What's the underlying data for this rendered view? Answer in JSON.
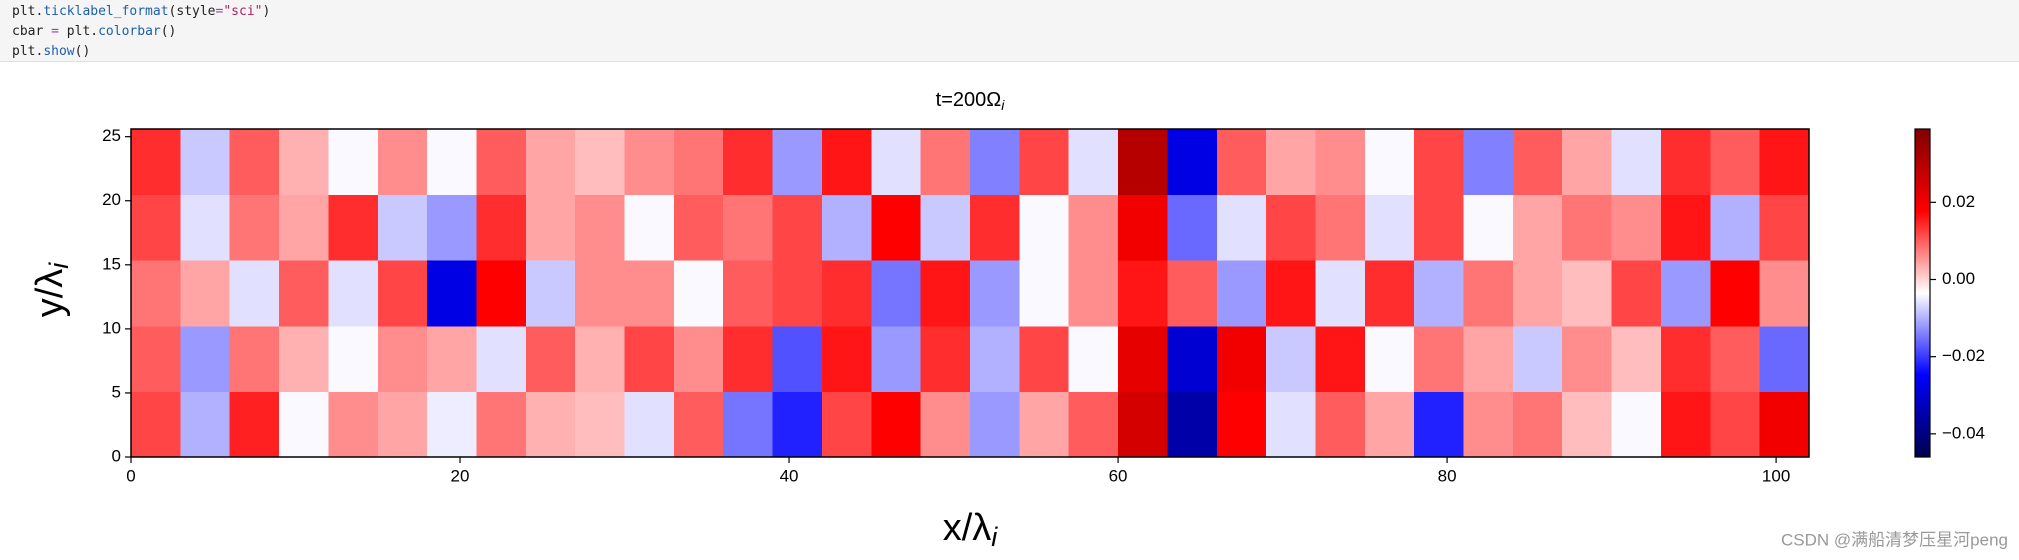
{
  "code": {
    "lines": [
      "plt.ticklabel_format(style=\"sci\")",
      "cbar = plt.colorbar()",
      "plt.show()"
    ]
  },
  "chart_data": {
    "type": "heatmap",
    "title": {
      "text": "t=200Ω",
      "subscript": "i"
    },
    "x_label": {
      "text": "x/λ",
      "subscript": "i"
    },
    "y_label": {
      "text": "y/λ",
      "subscript": "i"
    },
    "xlim": [
      0,
      102
    ],
    "xticks": [
      0,
      20,
      40,
      60,
      80,
      100
    ],
    "ylim": [
      0,
      25.6
    ],
    "yticks": [
      0,
      5,
      10,
      15,
      20,
      25
    ],
    "colormap": "seismic",
    "z": [
      [
        0.012,
        -0.01,
        0.015,
        -0.004,
        0.006,
        0.004,
        -0.005,
        0.008,
        0.003,
        0.002,
        -0.006,
        0.01,
        -0.015,
        -0.022,
        0.012,
        0.018,
        0.006,
        -0.012,
        0.004,
        0.01,
        0.025,
        -0.035,
        0.018,
        -0.006,
        0.01,
        0.004,
        -0.022,
        0.006,
        0.008,
        0.002,
        -0.004,
        0.016,
        0.012,
        0.02
      ],
      [
        0.01,
        -0.012,
        0.008,
        0.003,
        -0.004,
        0.006,
        0.004,
        -0.006,
        0.01,
        0.003,
        0.012,
        0.006,
        0.014,
        -0.018,
        0.016,
        -0.012,
        0.014,
        -0.01,
        0.012,
        -0.004,
        0.022,
        -0.03,
        0.02,
        -0.008,
        0.016,
        -0.004,
        0.008,
        0.004,
        -0.008,
        0.006,
        0.002,
        0.014,
        0.01,
        -0.016
      ],
      [
        0.008,
        0.004,
        -0.006,
        0.01,
        -0.006,
        0.012,
        -0.028,
        0.018,
        -0.008,
        0.006,
        0.006,
        -0.004,
        0.01,
        0.012,
        0.014,
        -0.015,
        0.016,
        -0.012,
        -0.004,
        0.006,
        0.016,
        0.01,
        -0.012,
        0.016,
        -0.006,
        0.014,
        -0.01,
        0.008,
        0.004,
        0.002,
        0.012,
        -0.012,
        0.018,
        0.006
      ],
      [
        0.012,
        -0.006,
        0.008,
        0.004,
        0.014,
        -0.008,
        -0.012,
        0.014,
        0.004,
        0.006,
        -0.004,
        0.01,
        0.008,
        0.012,
        -0.01,
        0.018,
        -0.008,
        0.014,
        -0.004,
        0.006,
        0.02,
        -0.016,
        -0.006,
        0.012,
        0.008,
        -0.006,
        0.012,
        -0.004,
        0.004,
        0.008,
        0.006,
        0.016,
        -0.01,
        0.012
      ],
      [
        0.014,
        -0.008,
        0.01,
        0.003,
        -0.004,
        0.006,
        -0.004,
        0.01,
        0.004,
        0.002,
        0.006,
        0.008,
        0.014,
        -0.012,
        0.016,
        -0.006,
        0.008,
        -0.014,
        0.012,
        -0.006,
        0.03,
        -0.028,
        0.01,
        0.004,
        0.006,
        -0.004,
        0.012,
        -0.014,
        0.01,
        0.004,
        -0.006,
        0.014,
        0.01,
        0.016
      ]
    ],
    "colorbar": {
      "lim": [
        -0.046,
        0.039
      ],
      "ticks": [
        {
          "value": 0.02,
          "label": "0.02"
        },
        {
          "value": 0,
          "label": "0.00"
        },
        {
          "value": -0.02,
          "label": "−0.02"
        },
        {
          "value": -0.04,
          "label": "−0.04"
        }
      ]
    }
  },
  "watermark": "CSDN @满船清梦压星河peng"
}
